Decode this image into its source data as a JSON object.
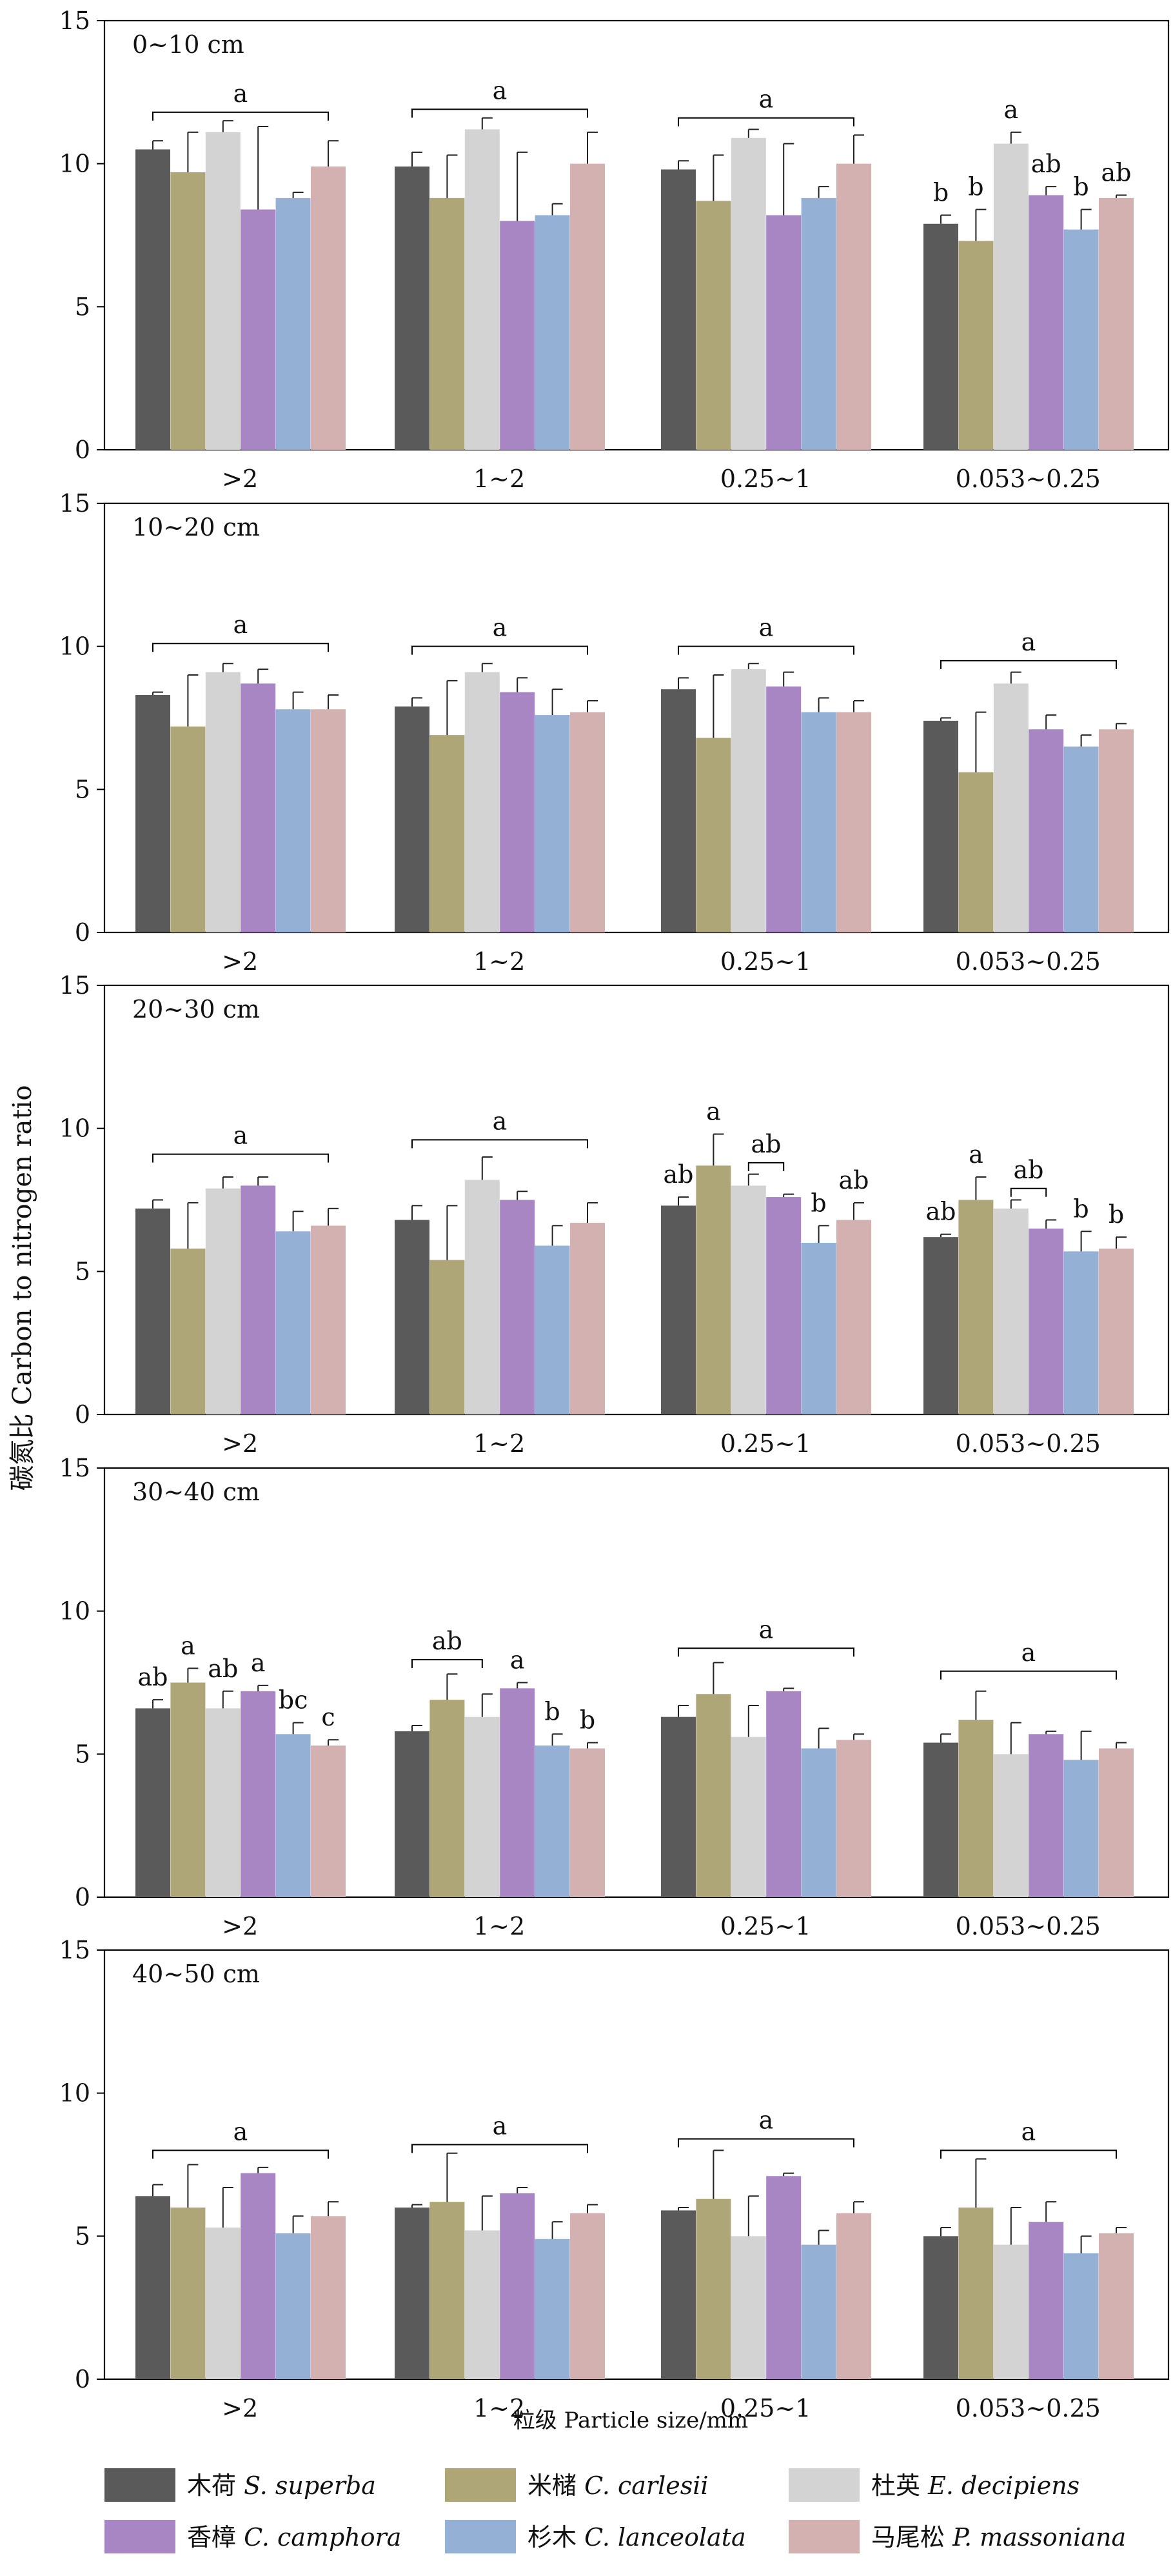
{
  "y_axis_label": "碳氮比  Carbon to nitrogen ratio",
  "x_axis_label": "粒级 Particle size/mm",
  "legend": [
    {
      "cn": "木荷",
      "latin": "S. superba",
      "color": "#5a5a5a"
    },
    {
      "cn": "米槠",
      "latin": "C. carlesii",
      "color": "#afa678"
    },
    {
      "cn": "杜英",
      "latin": "E. decipiens",
      "color": "#d3d3d3"
    },
    {
      "cn": "香樟",
      "latin": "C. camphora",
      "color": "#a885c3"
    },
    {
      "cn": "杉木",
      "latin": "C. lanceolata",
      "color": "#95b0d5"
    },
    {
      "cn": "马尾松",
      "latin": "P. massoniana",
      "color": "#d4b1b1"
    }
  ],
  "chart_data": [
    {
      "type": "bar",
      "title": "0~10 cm",
      "categories": [
        ">2",
        "1~2",
        "0.25~1",
        "0.053~0.25"
      ],
      "ylim": [
        0,
        15
      ],
      "yticks": [
        0,
        5,
        10,
        15
      ],
      "series": [
        {
          "name": "木荷 S. superba",
          "values": [
            10.5,
            9.9,
            9.8,
            7.9
          ],
          "errors": [
            0.3,
            0.5,
            0.3,
            0.3
          ]
        },
        {
          "name": "米槠 C. carlesii",
          "values": [
            9.7,
            8.8,
            8.7,
            7.3
          ],
          "errors": [
            1.4,
            1.5,
            1.6,
            1.1
          ]
        },
        {
          "name": "杜英 E. decipiens",
          "values": [
            11.1,
            11.2,
            10.9,
            10.7
          ],
          "errors": [
            0.4,
            0.4,
            0.3,
            0.4
          ]
        },
        {
          "name": "香樟 C. camphora",
          "values": [
            8.4,
            8.0,
            8.2,
            8.9
          ],
          "errors": [
            2.9,
            2.4,
            2.5,
            0.3
          ]
        },
        {
          "name": "杉木 C. lanceolata",
          "values": [
            8.8,
            8.2,
            8.8,
            7.7
          ],
          "errors": [
            0.2,
            0.4,
            0.4,
            0.7
          ]
        },
        {
          "name": "马尾松 P. massoniana",
          "values": [
            9.9,
            10.0,
            10.0,
            8.8
          ],
          "errors": [
            0.9,
            1.1,
            1.0,
            0.1
          ]
        }
      ],
      "annotations": [
        {
          "type": "bracket",
          "group": 0,
          "from": 0,
          "to": 5,
          "y": 11.8,
          "label": "a"
        },
        {
          "type": "bracket",
          "group": 1,
          "from": 0,
          "to": 5,
          "y": 11.9,
          "label": "a"
        },
        {
          "type": "bracket",
          "group": 2,
          "from": 0,
          "to": 5,
          "y": 11.6,
          "label": "a"
        },
        {
          "type": "letter",
          "group": 3,
          "bar": 0,
          "label": "b"
        },
        {
          "type": "letter",
          "group": 3,
          "bar": 1,
          "label": "b"
        },
        {
          "type": "letter",
          "group": 3,
          "bar": 2,
          "label": "a"
        },
        {
          "type": "letter",
          "group": 3,
          "bar": 3,
          "label": "ab"
        },
        {
          "type": "letter",
          "group": 3,
          "bar": 4,
          "label": "b"
        },
        {
          "type": "letter",
          "group": 3,
          "bar": 5,
          "label": "ab"
        }
      ]
    },
    {
      "type": "bar",
      "title": "10~20 cm",
      "categories": [
        ">2",
        "1~2",
        "0.25~1",
        "0.053~0.25"
      ],
      "ylim": [
        0,
        15
      ],
      "yticks": [
        0,
        5,
        10,
        15
      ],
      "series": [
        {
          "name": "木荷 S. superba",
          "values": [
            8.3,
            7.9,
            8.5,
            7.4
          ],
          "errors": [
            0.1,
            0.3,
            0.4,
            0.1
          ]
        },
        {
          "name": "米槠 C. carlesii",
          "values": [
            7.2,
            6.9,
            6.8,
            5.6
          ],
          "errors": [
            1.8,
            1.9,
            2.2,
            2.1
          ]
        },
        {
          "name": "杜英 E. decipiens",
          "values": [
            9.1,
            9.1,
            9.2,
            8.7
          ],
          "errors": [
            0.3,
            0.3,
            0.2,
            0.4
          ]
        },
        {
          "name": "香樟 C. camphora",
          "values": [
            8.7,
            8.4,
            8.6,
            7.1
          ],
          "errors": [
            0.5,
            0.5,
            0.5,
            0.5
          ]
        },
        {
          "name": "杉木 C. lanceolata",
          "values": [
            7.8,
            7.6,
            7.7,
            6.5
          ],
          "errors": [
            0.6,
            0.9,
            0.5,
            0.4
          ]
        },
        {
          "name": "马尾松 P. massoniana",
          "values": [
            7.8,
            7.7,
            7.7,
            7.1
          ],
          "errors": [
            0.5,
            0.4,
            0.4,
            0.2
          ]
        }
      ],
      "annotations": [
        {
          "type": "bracket",
          "group": 0,
          "from": 0,
          "to": 5,
          "y": 10.1,
          "label": "a"
        },
        {
          "type": "bracket",
          "group": 1,
          "from": 0,
          "to": 5,
          "y": 10.0,
          "label": "a"
        },
        {
          "type": "bracket",
          "group": 2,
          "from": 0,
          "to": 5,
          "y": 10.0,
          "label": "a"
        },
        {
          "type": "bracket",
          "group": 3,
          "from": 0,
          "to": 5,
          "y": 9.5,
          "label": "a"
        }
      ]
    },
    {
      "type": "bar",
      "title": "20~30 cm",
      "categories": [
        ">2",
        "1~2",
        "0.25~1",
        "0.053~0.25"
      ],
      "ylim": [
        0,
        15
      ],
      "yticks": [
        0,
        5,
        10,
        15
      ],
      "series": [
        {
          "name": "木荷 S. superba",
          "values": [
            7.2,
            6.8,
            7.3,
            6.2
          ],
          "errors": [
            0.3,
            0.5,
            0.3,
            0.1
          ]
        },
        {
          "name": "米槠 C. carlesii",
          "values": [
            5.8,
            5.4,
            8.7,
            7.5
          ],
          "errors": [
            1.6,
            1.9,
            1.1,
            0.8
          ]
        },
        {
          "name": "杜英 E. decipiens",
          "values": [
            7.9,
            8.2,
            8.0,
            7.2
          ],
          "errors": [
            0.4,
            0.8,
            0.4,
            0.3
          ]
        },
        {
          "name": "香樟 C. camphora",
          "values": [
            8.0,
            7.5,
            7.6,
            6.5
          ],
          "errors": [
            0.3,
            0.3,
            0.1,
            0.3
          ]
        },
        {
          "name": "杉木 C. lanceolata",
          "values": [
            6.4,
            5.9,
            6.0,
            5.7
          ],
          "errors": [
            0.7,
            0.7,
            0.6,
            0.7
          ]
        },
        {
          "name": "马尾松 P. massoniana",
          "values": [
            6.6,
            6.7,
            6.8,
            5.8
          ],
          "errors": [
            0.6,
            0.7,
            0.6,
            0.4
          ]
        }
      ],
      "annotations": [
        {
          "type": "bracket",
          "group": 0,
          "from": 0,
          "to": 5,
          "y": 9.1,
          "label": "a"
        },
        {
          "type": "bracket",
          "group": 1,
          "from": 0,
          "to": 5,
          "y": 9.6,
          "label": "a"
        },
        {
          "type": "letter",
          "group": 2,
          "bar": 0,
          "label": "ab"
        },
        {
          "type": "letter",
          "group": 2,
          "bar": 1,
          "label": "a"
        },
        {
          "type": "bracket",
          "group": 2,
          "from": 2,
          "to": 3,
          "y": 8.8,
          "label": "ab"
        },
        {
          "type": "letter",
          "group": 2,
          "bar": 4,
          "label": "b"
        },
        {
          "type": "letter",
          "group": 2,
          "bar": 5,
          "label": "ab"
        },
        {
          "type": "letter",
          "group": 3,
          "bar": 0,
          "label": "ab"
        },
        {
          "type": "letter",
          "group": 3,
          "bar": 1,
          "label": "a"
        },
        {
          "type": "bracket",
          "group": 3,
          "from": 2,
          "to": 3,
          "y": 7.9,
          "label": "ab"
        },
        {
          "type": "letter",
          "group": 3,
          "bar": 4,
          "label": "b"
        },
        {
          "type": "letter",
          "group": 3,
          "bar": 5,
          "label": "b"
        }
      ]
    },
    {
      "type": "bar",
      "title": "30~40 cm",
      "categories": [
        ">2",
        "1~2",
        "0.25~1",
        "0.053~0.25"
      ],
      "ylim": [
        0,
        15
      ],
      "yticks": [
        0,
        5,
        10,
        15
      ],
      "series": [
        {
          "name": "木荷 S. superba",
          "values": [
            6.6,
            5.8,
            6.3,
            5.4
          ],
          "errors": [
            0.3,
            0.2,
            0.4,
            0.3
          ]
        },
        {
          "name": "米槠 C. carlesii",
          "values": [
            7.5,
            6.9,
            7.1,
            6.2
          ],
          "errors": [
            0.5,
            0.9,
            1.1,
            1.0
          ]
        },
        {
          "name": "杜英 E. decipiens",
          "values": [
            6.6,
            6.3,
            5.6,
            5.0
          ],
          "errors": [
            0.6,
            0.8,
            1.1,
            1.1
          ]
        },
        {
          "name": "香樟 C. camphora",
          "values": [
            7.2,
            7.3,
            7.2,
            5.7
          ],
          "errors": [
            0.2,
            0.2,
            0.1,
            0.1
          ]
        },
        {
          "name": "杉木 C. lanceolata",
          "values": [
            5.7,
            5.3,
            5.2,
            4.8
          ],
          "errors": [
            0.4,
            0.4,
            0.7,
            1.0
          ]
        },
        {
          "name": "马尾松 P. massoniana",
          "values": [
            5.3,
            5.2,
            5.5,
            5.2
          ],
          "errors": [
            0.2,
            0.2,
            0.2,
            0.2
          ]
        }
      ],
      "annotations": [
        {
          "type": "letter",
          "group": 0,
          "bar": 0,
          "label": "ab"
        },
        {
          "type": "letter",
          "group": 0,
          "bar": 1,
          "label": "a"
        },
        {
          "type": "letter",
          "group": 0,
          "bar": 2,
          "label": "ab"
        },
        {
          "type": "letter",
          "group": 0,
          "bar": 3,
          "label": "a"
        },
        {
          "type": "letter",
          "group": 0,
          "bar": 4,
          "label": "bc"
        },
        {
          "type": "letter",
          "group": 0,
          "bar": 5,
          "label": "c"
        },
        {
          "type": "bracket",
          "group": 1,
          "from": 0,
          "to": 2,
          "y": 8.3,
          "label": "ab"
        },
        {
          "type": "letter",
          "group": 1,
          "bar": 3,
          "label": "a"
        },
        {
          "type": "letter",
          "group": 1,
          "bar": 4,
          "label": "b"
        },
        {
          "type": "letter",
          "group": 1,
          "bar": 5,
          "label": "b"
        },
        {
          "type": "bracket",
          "group": 2,
          "from": 0,
          "to": 5,
          "y": 8.7,
          "label": "a"
        },
        {
          "type": "bracket",
          "group": 3,
          "from": 0,
          "to": 5,
          "y": 7.9,
          "label": "a"
        }
      ]
    },
    {
      "type": "bar",
      "title": "40~50 cm",
      "categories": [
        ">2",
        "1~2",
        "0.25~1",
        "0.053~0.25"
      ],
      "ylim": [
        0,
        15
      ],
      "yticks": [
        0,
        5,
        10,
        15
      ],
      "series": [
        {
          "name": "木荷 S. superba",
          "values": [
            6.4,
            6.0,
            5.9,
            5.0
          ],
          "errors": [
            0.4,
            0.1,
            0.1,
            0.3
          ]
        },
        {
          "name": "米槠 C. carlesii",
          "values": [
            6.0,
            6.2,
            6.3,
            6.0
          ],
          "errors": [
            1.5,
            1.7,
            1.7,
            1.7
          ]
        },
        {
          "name": "杜英 E. decipiens",
          "values": [
            5.3,
            5.2,
            5.0,
            4.7
          ],
          "errors": [
            1.4,
            1.2,
            1.4,
            1.3
          ]
        },
        {
          "name": "香樟 C. camphora",
          "values": [
            7.2,
            6.5,
            7.1,
            5.5
          ],
          "errors": [
            0.2,
            0.2,
            0.1,
            0.7
          ]
        },
        {
          "name": "杉木 C. lanceolata",
          "values": [
            5.1,
            4.9,
            4.7,
            4.4
          ],
          "errors": [
            0.6,
            0.6,
            0.5,
            0.6
          ]
        },
        {
          "name": "马尾松 P. massoniana",
          "values": [
            5.7,
            5.8,
            5.8,
            5.1
          ],
          "errors": [
            0.5,
            0.3,
            0.4,
            0.2
          ]
        }
      ],
      "annotations": [
        {
          "type": "bracket",
          "group": 0,
          "from": 0,
          "to": 5,
          "y": 8.0,
          "label": "a"
        },
        {
          "type": "bracket",
          "group": 1,
          "from": 0,
          "to": 5,
          "y": 8.2,
          "label": "a"
        },
        {
          "type": "bracket",
          "group": 2,
          "from": 0,
          "to": 5,
          "y": 8.4,
          "label": "a"
        },
        {
          "type": "bracket",
          "group": 3,
          "from": 0,
          "to": 5,
          "y": 8.0,
          "label": "a"
        }
      ]
    }
  ]
}
